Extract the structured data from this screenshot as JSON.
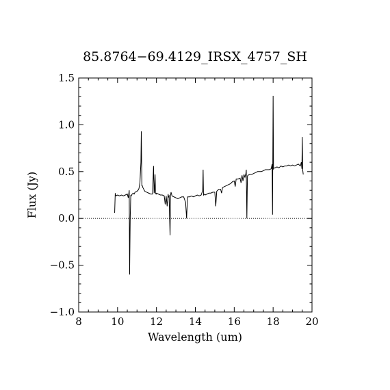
{
  "chart_data": {
    "type": "line",
    "title": "85.8764−69.4129_IRSX_4757_SH",
    "xlabel": "Wavelength (um)",
    "ylabel": "Flux (Jy)",
    "xlim": [
      8,
      20
    ],
    "ylim": [
      -1.0,
      1.5
    ],
    "xticks": [
      8,
      10,
      12,
      14,
      16,
      18,
      20
    ],
    "xtick_labels": [
      "8",
      "10",
      "12",
      "14",
      "16",
      "18",
      "20"
    ],
    "yticks": [
      -1.0,
      -0.5,
      0.0,
      0.5,
      1.0,
      1.5
    ],
    "ytick_labels": [
      "−1.0",
      "−0.5",
      "0.0",
      "0.5",
      "1.0",
      "1.5"
    ],
    "zero_line": true,
    "grid": false,
    "line_color": "#000000",
    "series": [
      {
        "x": [
          9.85,
          9.88,
          9.9,
          10.0,
          10.1,
          10.2,
          10.3,
          10.4,
          10.5,
          10.55,
          10.6,
          10.62,
          10.65,
          10.68,
          10.7,
          10.75,
          10.8,
          10.85,
          10.9,
          11.0,
          11.05,
          11.1,
          11.15,
          11.2,
          11.22,
          11.25,
          11.27,
          11.3,
          11.35,
          11.4,
          11.5,
          11.6,
          11.7,
          11.8,
          11.85,
          11.88,
          11.9,
          11.93,
          11.95,
          11.98,
          12.0,
          12.1,
          12.2,
          12.3,
          12.4,
          12.45,
          12.5,
          12.55,
          12.6,
          12.62,
          12.65,
          12.7,
          12.72,
          12.75,
          12.8,
          12.9,
          13.0,
          13.1,
          13.2,
          13.3,
          13.4,
          13.5,
          13.55,
          13.6,
          13.7,
          13.8,
          13.9,
          14.0,
          14.1,
          14.2,
          14.3,
          14.38,
          14.4,
          14.42,
          14.45,
          14.5,
          14.6,
          14.7,
          14.8,
          14.9,
          15.0,
          15.05,
          15.1,
          15.2,
          15.3,
          15.35,
          15.4,
          15.5,
          15.6,
          15.7,
          15.8,
          15.9,
          16.0,
          16.05,
          16.1,
          16.2,
          16.3,
          16.35,
          16.4,
          16.45,
          16.5,
          16.55,
          16.6,
          16.62,
          16.65,
          16.68,
          16.7,
          16.8,
          16.9,
          17.0,
          17.1,
          17.2,
          17.3,
          17.4,
          17.5,
          17.6,
          17.7,
          17.8,
          17.9,
          17.95,
          17.97,
          18.0,
          18.02,
          18.05,
          18.1,
          18.2,
          18.3,
          18.4,
          18.5,
          18.6,
          18.7,
          18.8,
          18.9,
          19.0,
          19.1,
          19.2,
          19.3,
          19.4,
          19.45,
          19.48,
          19.5,
          19.52,
          19.55
        ],
        "y": [
          0.06,
          0.27,
          0.24,
          0.25,
          0.24,
          0.25,
          0.24,
          0.25,
          0.26,
          0.22,
          0.3,
          -0.6,
          0.0,
          0.25,
          0.24,
          0.26,
          0.27,
          0.26,
          0.28,
          0.29,
          0.3,
          0.32,
          0.38,
          0.6,
          0.93,
          0.35,
          0.35,
          0.33,
          0.31,
          0.29,
          0.28,
          0.27,
          0.26,
          0.26,
          0.56,
          0.27,
          0.3,
          0.47,
          0.27,
          0.26,
          0.27,
          0.26,
          0.25,
          0.25,
          0.24,
          0.15,
          0.24,
          0.13,
          0.26,
          0.23,
          0.24,
          -0.18,
          0.24,
          0.28,
          0.24,
          0.23,
          0.22,
          0.21,
          0.22,
          0.23,
          0.23,
          0.17,
          0.0,
          0.23,
          0.23,
          0.24,
          0.23,
          0.24,
          0.25,
          0.24,
          0.25,
          0.3,
          0.52,
          0.25,
          0.26,
          0.25,
          0.26,
          0.27,
          0.27,
          0.28,
          0.28,
          0.13,
          0.29,
          0.31,
          0.31,
          0.27,
          0.33,
          0.34,
          0.35,
          0.36,
          0.37,
          0.39,
          0.4,
          0.34,
          0.42,
          0.42,
          0.43,
          0.38,
          0.46,
          0.4,
          0.47,
          0.44,
          0.48,
          0.52,
          0.0,
          0.45,
          0.46,
          0.47,
          0.47,
          0.48,
          0.49,
          0.5,
          0.5,
          0.5,
          0.51,
          0.52,
          0.52,
          0.52,
          0.53,
          0.58,
          0.04,
          1.31,
          0.53,
          0.54,
          0.54,
          0.55,
          0.54,
          0.56,
          0.55,
          0.56,
          0.56,
          0.57,
          0.56,
          0.57,
          0.56,
          0.57,
          0.58,
          0.56,
          0.6,
          0.53,
          0.87,
          0.52,
          0.47
        ]
      }
    ]
  }
}
